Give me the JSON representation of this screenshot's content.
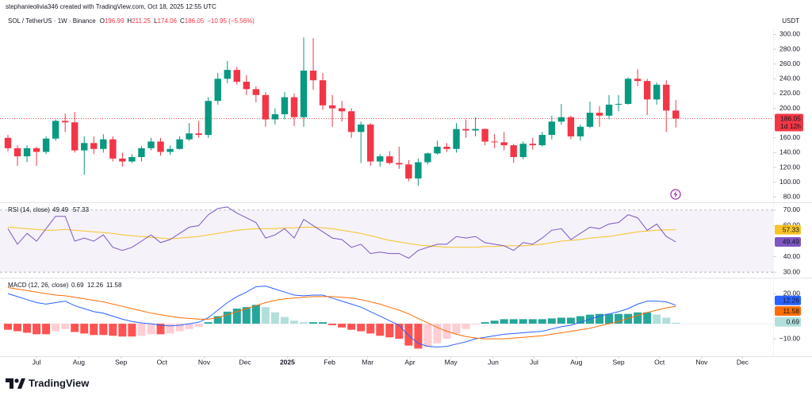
{
  "header": {
    "author_line": "stephanieolivia346 created with TradingView.com, Oct 18, 2025 12:55 UTC"
  },
  "footer": {
    "brand": "TradingView"
  },
  "chart_data": [
    {
      "type": "candlestick",
      "title": "SOL / TetherUS · 1W · Binance",
      "unit": "USDT",
      "ohlc_labels": [
        "O",
        "H",
        "L",
        "C"
      ],
      "change": "−10.95 (−5.56%)",
      "countdown": "1d 12h",
      "up_color": "#089981",
      "down_color": "#f23645",
      "xlim": [
        -0.83,
        80.2
      ],
      "ylim": [
        76,
        308
      ],
      "xticks": [
        {
          "value": 3,
          "label": "Jul"
        },
        {
          "value": 7.43,
          "label": "Aug"
        },
        {
          "value": 11.86,
          "label": "Sep"
        },
        {
          "value": 16.14,
          "label": "Oct"
        },
        {
          "value": 20.57,
          "label": "Nov"
        },
        {
          "value": 24.86,
          "label": "Dec"
        },
        {
          "value": 29.29,
          "label": "2025"
        },
        {
          "value": 33.71,
          "label": "Feb"
        },
        {
          "value": 37.71,
          "label": "Mar"
        },
        {
          "value": 42.14,
          "label": "Apr"
        },
        {
          "value": 46.43,
          "label": "May"
        },
        {
          "value": 50.86,
          "label": "Jun"
        },
        {
          "value": 55.14,
          "label": "Jul"
        },
        {
          "value": 59.57,
          "label": "Aug"
        },
        {
          "value": 64,
          "label": "Sep"
        },
        {
          "value": 68.29,
          "label": "Oct"
        },
        {
          "value": 72.71,
          "label": "Nov"
        },
        {
          "value": 77,
          "label": "Dec"
        }
      ],
      "yticks": [
        {
          "value": 80,
          "label": "80.00"
        },
        {
          "value": 100,
          "label": "100.00"
        },
        {
          "value": 120,
          "label": "120.00"
        },
        {
          "value": 140,
          "label": "140.00"
        },
        {
          "value": 160,
          "label": "160.00"
        },
        {
          "value": 200,
          "label": "200.00"
        },
        {
          "value": 220,
          "label": "220.00"
        },
        {
          "value": 240,
          "label": "240.00"
        },
        {
          "value": 260,
          "label": "260.00"
        },
        {
          "value": 280,
          "label": "280.00"
        },
        {
          "value": 300,
          "label": "300.00"
        }
      ],
      "open": [
        160,
        146,
        135,
        146,
        141,
        159,
        183,
        181,
        143,
        153,
        145,
        158,
        132,
        128,
        134,
        146,
        155,
        141,
        145,
        158,
        166,
        164,
        210,
        240,
        252,
        236,
        226,
        218,
        185,
        192,
        215,
        188,
        251,
        238,
        204,
        200,
        196,
        168,
        178,
        128,
        135,
        126,
        124,
        105,
        127,
        139,
        148,
        145,
        172,
        170,
        172,
        155,
        154,
        150,
        134,
        152,
        150,
        164,
        182,
        188,
        162,
        175,
        194,
        190,
        205,
        206,
        240,
        237,
        212,
        232,
        196.99
      ],
      "high": [
        164,
        150,
        150,
        148,
        162,
        185,
        193,
        195,
        162,
        162,
        165,
        162,
        140,
        138,
        149,
        160,
        160,
        150,
        162,
        180,
        183,
        215,
        248,
        264,
        256,
        245,
        230,
        222,
        200,
        222,
        220,
        296,
        295,
        248,
        218,
        210,
        200,
        182,
        180,
        138,
        142,
        148,
        130,
        132,
        140,
        156,
        153,
        180,
        185,
        188,
        173,
        165,
        168,
        152,
        155,
        160,
        168,
        190,
        206,
        190,
        178,
        209,
        203,
        218,
        218,
        242,
        253,
        240,
        235,
        238,
        211.25
      ],
      "low": [
        142,
        122,
        127,
        122,
        138,
        156,
        168,
        140,
        110,
        138,
        140,
        128,
        121,
        126,
        128,
        143,
        136,
        137,
        144,
        156,
        160,
        160,
        205,
        234,
        232,
        218,
        208,
        175,
        178,
        185,
        176,
        175,
        225,
        198,
        175,
        182,
        160,
        126,
        122,
        121,
        124,
        118,
        101,
        95,
        124,
        137,
        141,
        140,
        160,
        162,
        150,
        146,
        143,
        126,
        131,
        144,
        148,
        158,
        178,
        158,
        156,
        173,
        175,
        185,
        196,
        205,
        230,
        191,
        205,
        168,
        174.06
      ],
      "close": [
        146,
        135,
        146,
        141,
        159,
        183,
        181,
        143,
        153,
        145,
        158,
        132,
        128,
        134,
        146,
        155,
        141,
        145,
        158,
        166,
        164,
        210,
        240,
        252,
        236,
        226,
        218,
        185,
        192,
        215,
        188,
        251,
        238,
        204,
        200,
        196,
        168,
        178,
        128,
        135,
        126,
        124,
        105,
        127,
        139,
        148,
        145,
        172,
        170,
        172,
        155,
        154,
        150,
        134,
        152,
        150,
        164,
        182,
        188,
        162,
        175,
        194,
        190,
        205,
        206,
        240,
        237,
        212,
        232,
        197,
        186.05
      ]
    },
    {
      "type": "line",
      "title": "RSI (14, close)",
      "ylim": [
        27,
        74
      ],
      "band": [
        30,
        70
      ],
      "band_color": "#7e57c2",
      "yticks": [
        {
          "value": 30,
          "label": "30.00"
        },
        {
          "value": 40,
          "label": "40.00"
        },
        {
          "value": 60,
          "label": "60.00"
        },
        {
          "value": 70,
          "label": "70.00"
        }
      ],
      "series": [
        {
          "color": "#7e57c2",
          "values": [
            58,
            48,
            55,
            50,
            58,
            66,
            66,
            50,
            52,
            50,
            54,
            46,
            44,
            46,
            50,
            54,
            49,
            51,
            55,
            59,
            60,
            67,
            71,
            72,
            68,
            65,
            62,
            52,
            54,
            58,
            52,
            64,
            60,
            56,
            52,
            51,
            46,
            48,
            42,
            43,
            42,
            42,
            39,
            44,
            46,
            48,
            48,
            53,
            52,
            53,
            49,
            48,
            47,
            44,
            49,
            48,
            52,
            57,
            58,
            51,
            55,
            59,
            58,
            61,
            62,
            67,
            65,
            57,
            61,
            53,
            49.49
          ]
        },
        {
          "color": "#f7c325",
          "values": [
            59,
            58.5,
            58,
            57.5,
            57,
            57,
            57.5,
            57,
            56.5,
            56,
            55.5,
            55,
            54,
            53.5,
            53,
            52.5,
            52,
            51.5,
            52,
            52.5,
            53,
            54,
            55,
            56,
            57,
            57.5,
            58,
            58,
            58,
            58.5,
            58.5,
            59,
            59,
            58.5,
            58,
            57,
            56,
            55,
            53.5,
            52,
            50.5,
            49.5,
            48.5,
            47.5,
            47,
            46.5,
            46,
            46,
            46,
            46,
            46.5,
            46.5,
            47,
            47,
            47,
            47.5,
            48,
            49,
            50,
            50.5,
            51,
            52,
            52.5,
            53,
            54,
            55,
            56,
            56.5,
            57,
            57.3,
            57.33
          ]
        }
      ]
    },
    {
      "type": "macd",
      "title": "MACD (12, 26, close)",
      "ylim": [
        -21,
        29.5
      ],
      "yticks": [
        {
          "value": -10,
          "label": "−10.00"
        },
        {
          "value": 20,
          "label": "20.00"
        }
      ],
      "histogram_colors": [
        "#26a69a",
        "#b2dfdb",
        "#ff5252",
        "#ffcdd2"
      ],
      "histogram": [
        -4,
        -5,
        -6,
        -7,
        -7,
        -5,
        -3.5,
        -5.5,
        -6.5,
        -7.5,
        -7.5,
        -8,
        -8.5,
        -8.5,
        -8,
        -7,
        -7,
        -6.5,
        -5,
        -3.5,
        -2,
        1,
        5,
        8,
        10,
        11,
        12.5,
        11,
        7.5,
        4.5,
        2,
        1,
        1,
        1,
        -1,
        -2.5,
        -4,
        -5,
        -6.5,
        -8,
        -9,
        -10,
        -14.5,
        -16.5,
        -15.5,
        -13,
        -10,
        -6.5,
        -3.5,
        -0.5,
        1,
        2,
        3,
        3,
        3,
        3,
        3,
        3.5,
        4,
        4,
        5,
        6,
        6.5,
        6.5,
        6.5,
        6.5,
        7.5,
        7.5,
        6,
        4,
        0.69
      ],
      "series": [
        {
          "color": "#2962ff",
          "values": [
            20,
            18,
            16,
            14,
            13,
            14,
            15,
            12,
            10,
            8,
            7,
            5,
            3,
            1.5,
            0.5,
            0,
            -1,
            -1.5,
            -1,
            0,
            1,
            4,
            9,
            14,
            18,
            21,
            24.5,
            25,
            23,
            21,
            19,
            18.5,
            19,
            19,
            17,
            15,
            13,
            11,
            8,
            5,
            2,
            -1,
            -8,
            -13,
            -15,
            -15.5,
            -15,
            -13.5,
            -12,
            -10,
            -9,
            -8,
            -7,
            -6.5,
            -6,
            -5.5,
            -5,
            -3.5,
            -2,
            -1,
            1,
            3,
            5,
            6.5,
            8,
            10,
            13,
            15,
            15,
            14.5,
            12.26
          ]
        },
        {
          "color": "#ff6d00",
          "values": [
            24,
            23,
            22,
            21,
            20,
            19,
            18.5,
            17.5,
            16.5,
            15.5,
            14.5,
            13,
            11.5,
            10,
            8.5,
            7,
            6,
            5,
            4,
            3.5,
            3,
            3,
            4,
            6,
            8,
            10,
            12,
            14,
            15.5,
            16.5,
            17,
            17.5,
            18,
            18,
            18,
            17.5,
            17,
            16,
            14.5,
            13,
            11,
            9,
            6.5,
            3.5,
            0.5,
            -2.5,
            -5,
            -7,
            -8.5,
            -9.5,
            -10,
            -10,
            -10,
            -9.5,
            -9,
            -8.5,
            -8,
            -7,
            -6,
            -5,
            -4,
            -3,
            -1.5,
            0,
            1.5,
            3.5,
            5.5,
            7.5,
            9,
            10.5,
            11.58
          ]
        }
      ]
    }
  ]
}
